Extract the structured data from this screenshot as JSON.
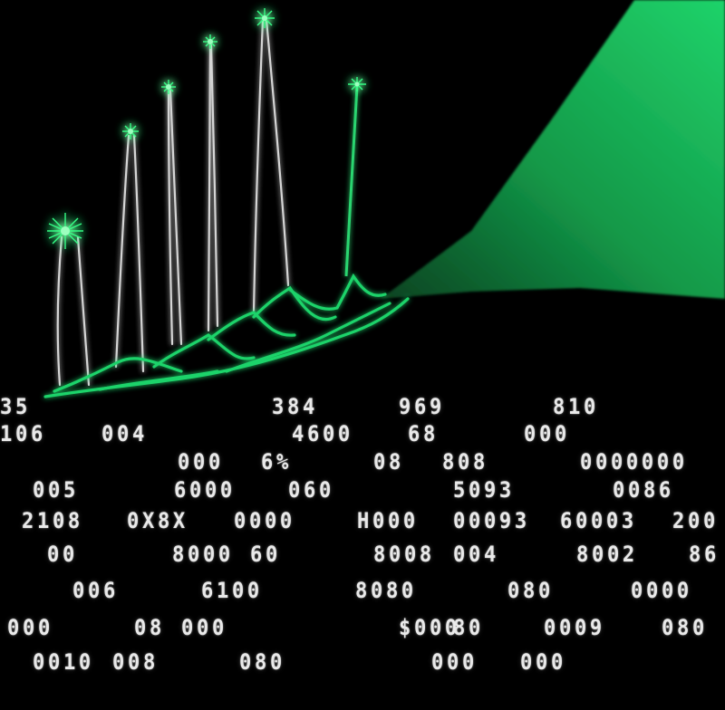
{
  "image": {
    "description_kind": "illustration",
    "background_color": "#000000",
    "accent_green": "#1fd36a",
    "glow_green": "#2bff7a",
    "wire_color": "#e8e8e8",
    "digit_color": "#e9e9e9"
  },
  "digit_rows": [
    [
      "35",
      "384",
      "969",
      "810"
    ],
    [
      "106",
      "004",
      "4600",
      "68",
      "000"
    ],
    [
      "000",
      "6%",
      "08",
      "808",
      "0000000"
    ],
    [
      "005",
      "6000",
      "060",
      "5093",
      "0086"
    ],
    [
      "2108",
      "0X8X",
      "0000",
      "H000",
      "00093",
      "60003",
      "200"
    ],
    [
      "00",
      "8000",
      "60",
      "8008",
      "004",
      "8002",
      "86"
    ],
    [
      "006",
      "6100",
      "8080",
      "080",
      "0000"
    ],
    [
      "000",
      "08",
      "000",
      "$000",
      "80",
      "0009",
      "080"
    ],
    [
      "0010",
      "008",
      "080",
      "000",
      "000"
    ]
  ]
}
